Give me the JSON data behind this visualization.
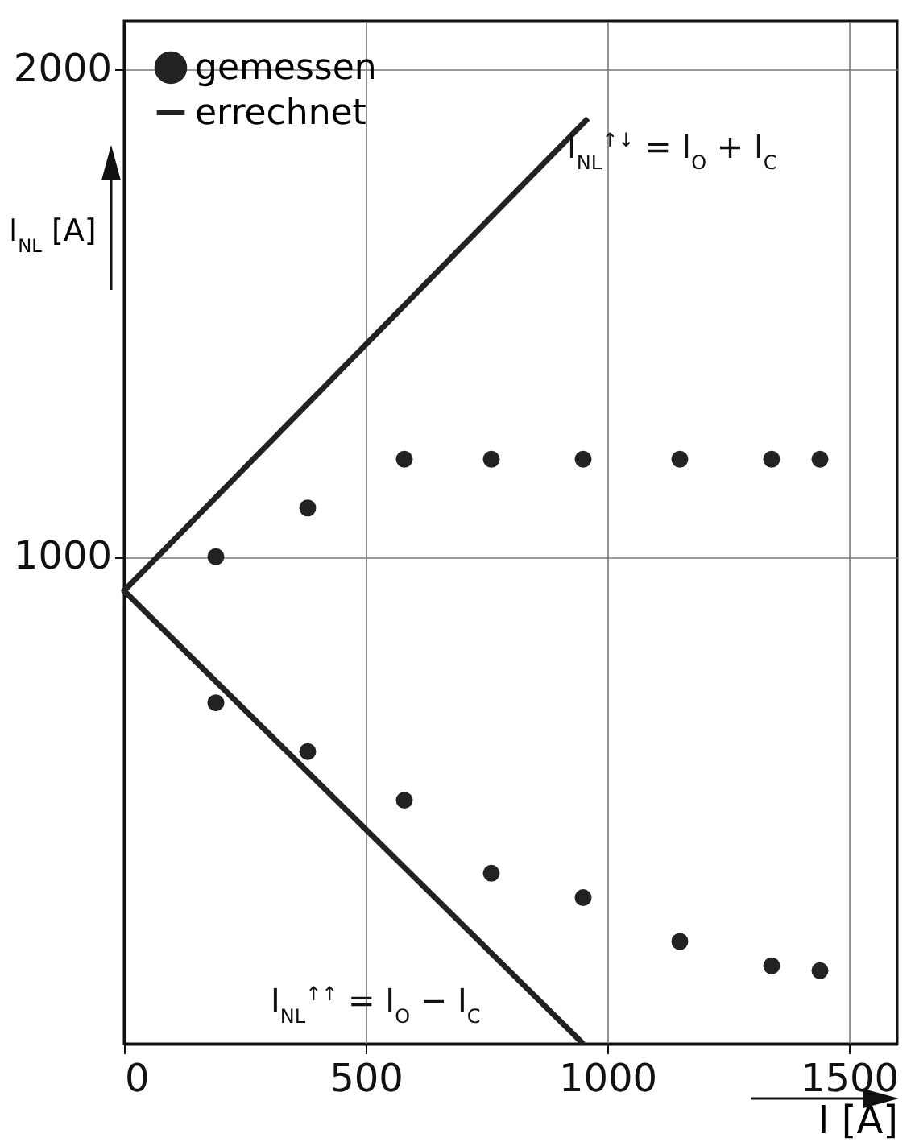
{
  "chart_data": {
    "type": "scatter",
    "xlabel": "I [A]",
    "ylabel": "I$_{NL}$ [A]",
    "xlim": [
      0,
      1600
    ],
    "ylim": [
      0,
      2100
    ],
    "xticks": [
      0,
      500,
      1000,
      1500
    ],
    "yticks": [
      1000,
      2000
    ],
    "grid": true,
    "legend": "top left",
    "series": [
      {
        "name": "gemessen",
        "marker": "circle",
        "color": "#222222",
        "x": [
          190,
          380,
          580,
          760,
          950,
          1150,
          1340,
          1440,
          190,
          380,
          580,
          760,
          950,
          1150,
          1340,
          1440
        ],
        "values": [
          1000,
          1100,
          1200,
          1200,
          1200,
          1200,
          1200,
          1200,
          700,
          600,
          500,
          350,
          300,
          210,
          160,
          150
        ]
      },
      {
        "name": "errechnet",
        "type": "line",
        "color": "#222222",
        "line_style": "solid",
        "x": [
          950,
          0,
          960
        ],
        "values": [
          0,
          930,
          1900
        ]
      }
    ],
    "annotations": [
      "I$_{NL}$$^{↑↓}$ = I$_{O}$ + I$_{C}$",
      "I$_{NL}$$^{↑↑}$ = I$_{O}$ − I$_{C}$"
    ]
  }
}
